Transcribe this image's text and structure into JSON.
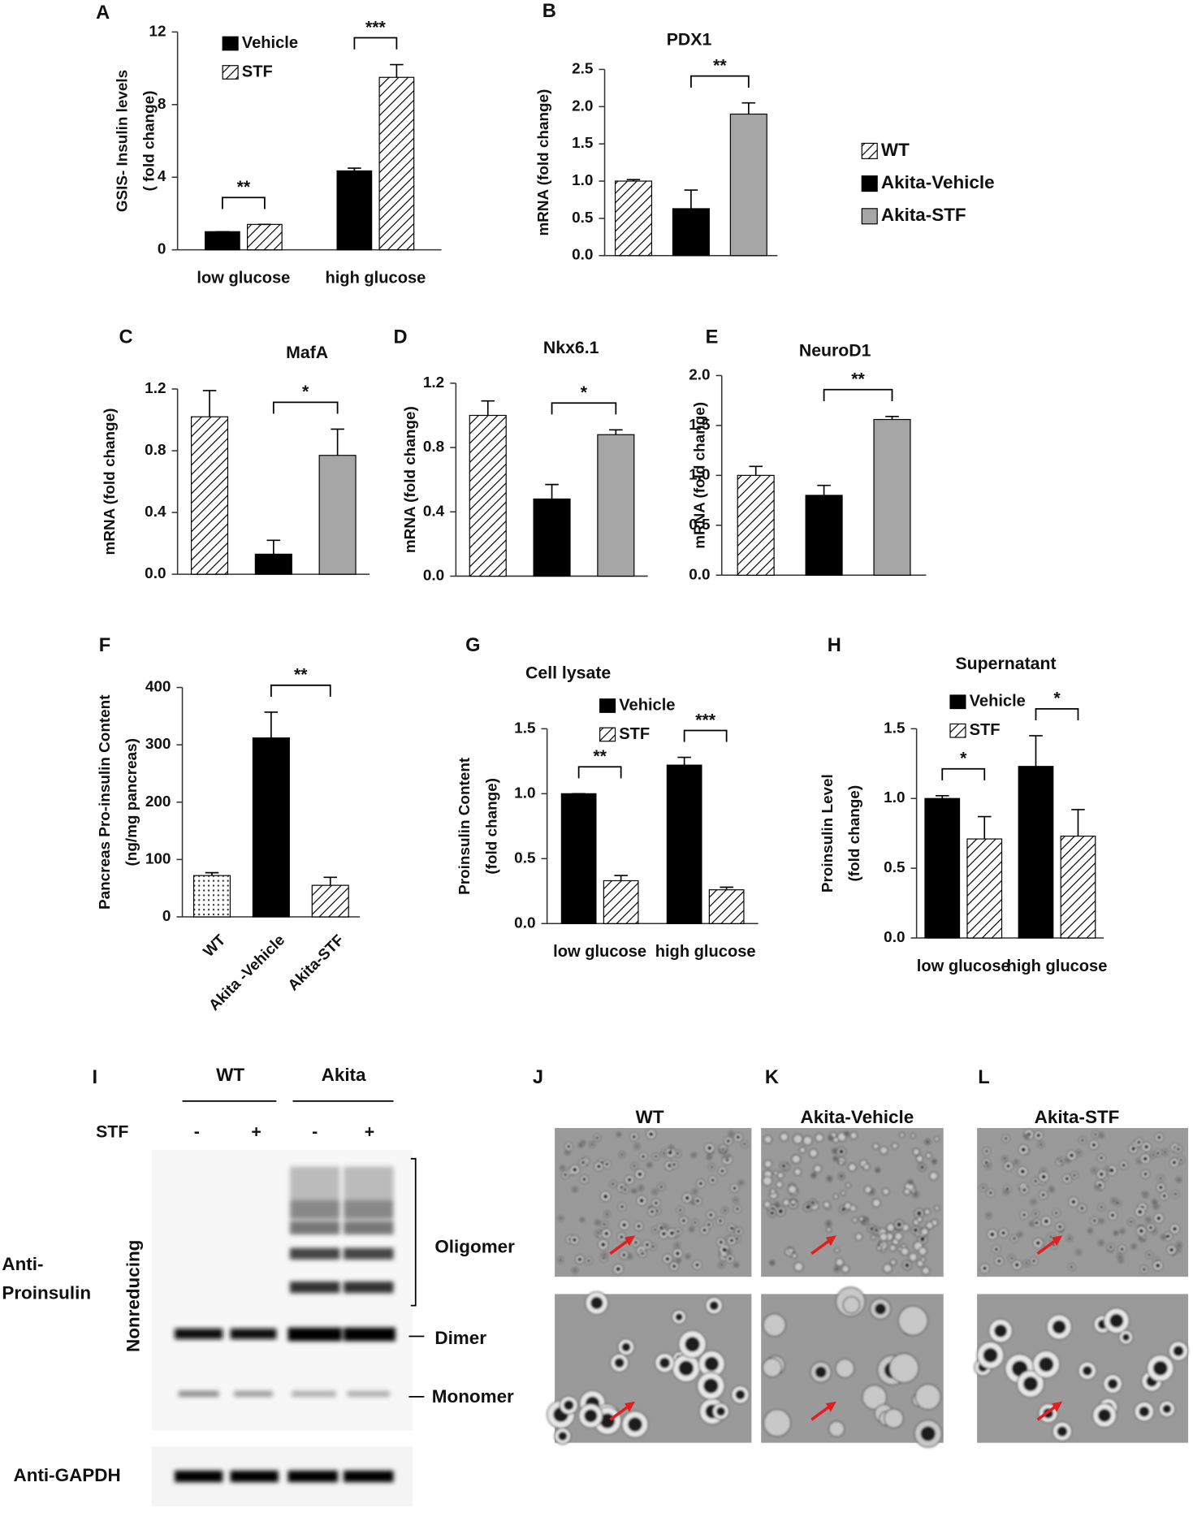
{
  "chart_data": [
    {
      "panel": "A",
      "type": "bar",
      "y_label": [
        "GSIS- Insulin levels",
        "( fold change)"
      ],
      "categories": [
        "low glucose",
        "high glucose"
      ],
      "series": [
        {
          "name": "Vehicle",
          "color": "#000000",
          "values": [
            1,
            4.35
          ],
          "errors": [
            0,
            0.15
          ]
        },
        {
          "name": "STF",
          "color": "hatch",
          "values": [
            1.4,
            9.5
          ],
          "errors": [
            0,
            0.7
          ]
        }
      ],
      "ylim": [
        0,
        12
      ],
      "yticks": [
        0,
        4,
        8,
        12
      ],
      "annotations": [
        "**",
        "***"
      ]
    },
    {
      "panel": "B",
      "type": "bar",
      "title": "PDX1",
      "y_label": [
        "mRNA (fold change)"
      ],
      "legend": [
        "WT",
        "Akita-Vehicle",
        "Akita-STF"
      ],
      "colors": [
        "hatch",
        "#000000",
        "#a6a6a6"
      ],
      "values": [
        1.0,
        0.63,
        1.9
      ],
      "errors": [
        0.02,
        0.25,
        0.15
      ],
      "ylim": [
        0,
        2.5
      ],
      "yticks": [
        {
          "value": 0,
          "label": "0.0"
        },
        0.5,
        {
          "value": 1,
          "label": "1.0"
        },
        1.5,
        {
          "value": 2,
          "label": "2.0"
        },
        2.5
      ],
      "annotations": [
        "**"
      ]
    },
    {
      "panel": "C",
      "type": "bar",
      "title": "MafA",
      "y_label": [
        "mRNA (fold change)"
      ],
      "colors": [
        "hatch",
        "#000000",
        "#a6a6a6"
      ],
      "values": [
        1.02,
        0.13,
        0.77
      ],
      "errors": [
        0.17,
        0.09,
        0.17
      ],
      "ylim": [
        0,
        1.2
      ],
      "yticks": [
        {
          "value": 0,
          "label": "0.0"
        },
        0.4,
        0.8,
        1.2
      ],
      "annotations": [
        "*"
      ]
    },
    {
      "panel": "D",
      "type": "bar",
      "title": "Nkx6.1",
      "y_label": [
        "mRNA (fold change)"
      ],
      "colors": [
        "hatch",
        "#000000",
        "#a6a6a6"
      ],
      "values": [
        1.0,
        0.48,
        0.88
      ],
      "errors": [
        0.09,
        0.09,
        0.03
      ],
      "ylim": [
        0,
        1.2
      ],
      "yticks": [
        {
          "value": 0,
          "label": "0.0"
        },
        0.4,
        0.8,
        1.2
      ],
      "annotations": [
        "*"
      ]
    },
    {
      "panel": "E",
      "type": "bar",
      "title": "NeuroD1",
      "y_label": [
        "mRNA (fold change)"
      ],
      "colors": [
        "hatch",
        "#000000",
        "#a6a6a6"
      ],
      "values": [
        1.0,
        0.8,
        1.56
      ],
      "errors": [
        0.09,
        0.1,
        0.03
      ],
      "ylim": [
        0,
        2.0
      ],
      "yticks": [
        {
          "value": 0,
          "label": "0.0"
        },
        0.5,
        {
          "value": 1,
          "label": "1.0"
        },
        1.5,
        {
          "value": 2,
          "label": "2.0"
        }
      ],
      "annotations": [
        "**"
      ]
    },
    {
      "panel": "F",
      "type": "bar",
      "y_label": [
        "Pancreas Pro-insulin Content",
        "(ng/mg pancreas)"
      ],
      "categories": [
        "WT",
        "Akita -Vehicle",
        "Akita-STF"
      ],
      "colors": [
        "dots",
        "#000000",
        "hatch"
      ],
      "values": [
        72,
        312,
        55
      ],
      "errors": [
        5,
        45,
        14
      ],
      "ylim": [
        0,
        400
      ],
      "yticks": [
        0,
        100,
        200,
        300,
        400
      ],
      "annotations": [
        "**"
      ]
    },
    {
      "panel": "G",
      "type": "bar",
      "title": "Cell lysate",
      "y_label": [
        "Proinsulin Content",
        "(fold change)"
      ],
      "categories": [
        "low glucose",
        "high glucose"
      ],
      "series": [
        {
          "name": "Vehicle",
          "color": "#000000",
          "values": [
            1.0,
            1.22
          ],
          "errors": [
            0,
            0.06
          ]
        },
        {
          "name": "STF",
          "color": "hatch",
          "values": [
            0.33,
            0.26
          ],
          "errors": [
            0.04,
            0.02
          ]
        }
      ],
      "ylim": [
        0,
        1.5
      ],
      "yticks": [
        {
          "value": 0,
          "label": "0.0"
        },
        0.5,
        {
          "value": 1,
          "label": "1.0"
        },
        1.5
      ],
      "annotations": [
        "**",
        "***"
      ]
    },
    {
      "panel": "H",
      "type": "bar",
      "title": "Supernatant",
      "y_label": [
        "Proinsulin Level",
        "(fold change)"
      ],
      "categories": [
        "low glucose",
        "high glucose"
      ],
      "series": [
        {
          "name": "Vehicle",
          "color": "#000000",
          "values": [
            1.0,
            1.23
          ],
          "errors": [
            0.02,
            0.22
          ]
        },
        {
          "name": "STF",
          "color": "hatch",
          "values": [
            0.71,
            0.73
          ],
          "errors": [
            0.16,
            0.19
          ]
        }
      ],
      "ylim": [
        0,
        1.5
      ],
      "yticks": [
        {
          "value": 0,
          "label": "0.0"
        },
        0.5,
        {
          "value": 1,
          "label": "1.0"
        },
        1.5
      ],
      "annotations": [
        "*",
        "*"
      ]
    }
  ],
  "blot": {
    "panel": "I",
    "groups": [
      "WT",
      "Akita"
    ],
    "treatment": "STF",
    "signs": [
      "-",
      "+",
      "-",
      "+"
    ],
    "antibody": [
      "Anti-",
      "Proinsulin"
    ],
    "condition": "Nonreducing",
    "bands": [
      "Oligomer",
      "Dimer",
      "Monomer"
    ],
    "loading": "Anti-GAPDH"
  },
  "micrographs": [
    {
      "panel": "J",
      "title": "WT"
    },
    {
      "panel": "K",
      "title": "Akita-Vehicle"
    },
    {
      "panel": "L",
      "title": "Akita-STF"
    }
  ]
}
